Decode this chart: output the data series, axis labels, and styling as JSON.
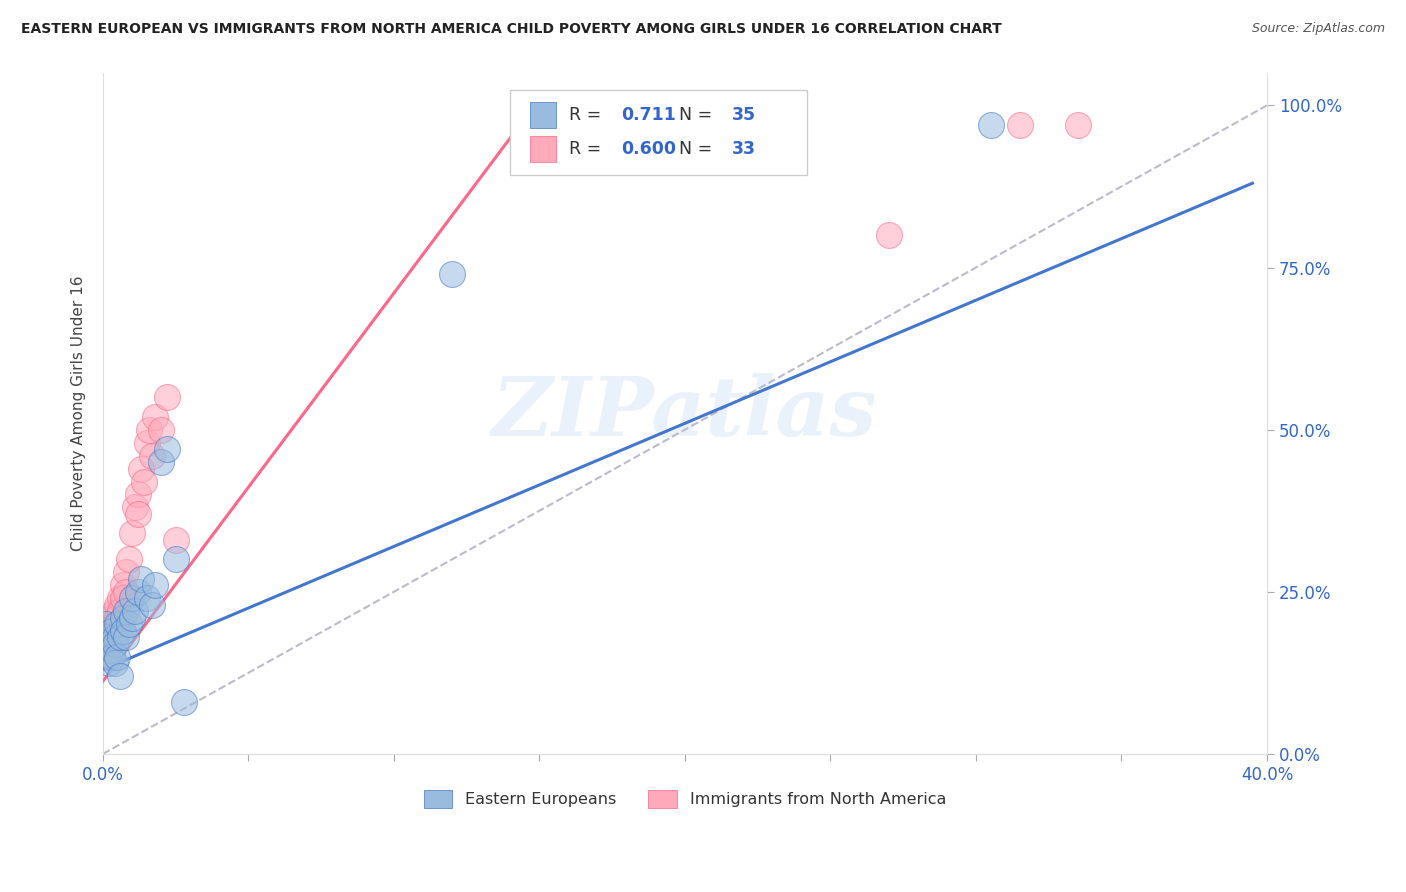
{
  "title": "EASTERN EUROPEAN VS IMMIGRANTS FROM NORTH AMERICA CHILD POVERTY AMONG GIRLS UNDER 16 CORRELATION CHART",
  "source": "Source: ZipAtlas.com",
  "ylabel": "Child Poverty Among Girls Under 16",
  "xlim": [
    0.0,
    0.4
  ],
  "ylim": [
    0.0,
    1.05
  ],
  "xticks": [
    0.0,
    0.05,
    0.1,
    0.15,
    0.2,
    0.25,
    0.3,
    0.35,
    0.4
  ],
  "yticks_right": [
    0.0,
    0.25,
    0.5,
    0.75,
    1.0
  ],
  "ytick_right_labels": [
    "0.0%",
    "25.0%",
    "50.0%",
    "75.0%",
    "100.0%"
  ],
  "blue_color": "#99BBDD",
  "pink_color": "#FFAABB",
  "blue_line_color": "#4477CC",
  "pink_line_color": "#FF6688",
  "gray_dash_color": "#BBBBCC",
  "legend_R_blue": "0.711",
  "legend_N_blue": "35",
  "legend_R_pink": "0.600",
  "legend_N_pink": "33",
  "legend_label_blue": "Eastern Europeans",
  "legend_label_pink": "Immigrants from North America",
  "blue_scatter_x": [
    0.001,
    0.001,
    0.001,
    0.002,
    0.002,
    0.002,
    0.003,
    0.003,
    0.003,
    0.004,
    0.004,
    0.004,
    0.005,
    0.005,
    0.006,
    0.006,
    0.007,
    0.007,
    0.008,
    0.008,
    0.009,
    0.01,
    0.01,
    0.011,
    0.012,
    0.013,
    0.015,
    0.017,
    0.018,
    0.02,
    0.022,
    0.025,
    0.028,
    0.12,
    0.305
  ],
  "blue_scatter_y": [
    0.2,
    0.18,
    0.16,
    0.17,
    0.15,
    0.14,
    0.19,
    0.16,
    0.15,
    0.18,
    0.17,
    0.14,
    0.2,
    0.15,
    0.18,
    0.12,
    0.21,
    0.19,
    0.22,
    0.18,
    0.2,
    0.21,
    0.24,
    0.22,
    0.25,
    0.27,
    0.24,
    0.23,
    0.26,
    0.45,
    0.47,
    0.3,
    0.08,
    0.74,
    0.97
  ],
  "pink_scatter_x": [
    0.001,
    0.001,
    0.002,
    0.002,
    0.003,
    0.003,
    0.004,
    0.004,
    0.005,
    0.005,
    0.006,
    0.006,
    0.007,
    0.007,
    0.008,
    0.008,
    0.009,
    0.01,
    0.011,
    0.012,
    0.012,
    0.013,
    0.014,
    0.015,
    0.016,
    0.017,
    0.018,
    0.02,
    0.022,
    0.025,
    0.27,
    0.315,
    0.335
  ],
  "pink_scatter_y": [
    0.19,
    0.17,
    0.18,
    0.16,
    0.21,
    0.19,
    0.22,
    0.2,
    0.23,
    0.21,
    0.24,
    0.22,
    0.26,
    0.24,
    0.28,
    0.25,
    0.3,
    0.34,
    0.38,
    0.4,
    0.37,
    0.44,
    0.42,
    0.48,
    0.5,
    0.46,
    0.52,
    0.5,
    0.55,
    0.33,
    0.8,
    0.97,
    0.97
  ],
  "blue_line_x": [
    0.0,
    0.395
  ],
  "blue_line_y": [
    0.13,
    0.88
  ],
  "pink_line_x": [
    -0.002,
    0.145
  ],
  "pink_line_y": [
    0.1,
    0.98
  ],
  "ref_line_x": [
    0.0,
    0.4
  ],
  "ref_line_y": [
    0.0,
    1.0
  ],
  "watermark": "ZIPatlas",
  "background_color": "#FFFFFF",
  "grid_color": "#DDDDDD",
  "accent_color": "#3366CC"
}
